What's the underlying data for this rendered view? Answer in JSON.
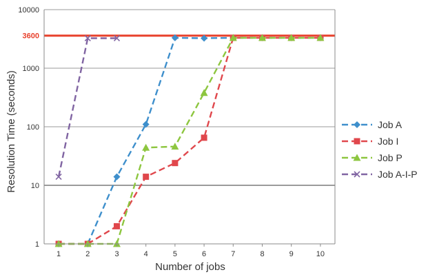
{
  "chart_data": {
    "type": "line",
    "title": "",
    "xlabel": "Number of jobs",
    "ylabel": "Resolution Time (seconds)",
    "y_scale": "log",
    "ylim": [
      1,
      10000
    ],
    "xlim": [
      0.5,
      10.5
    ],
    "x": [
      1,
      2,
      3,
      4,
      5,
      6,
      7,
      8,
      9,
      10
    ],
    "x_tick_labels": [
      "1",
      "2",
      "3",
      "4",
      "5",
      "6",
      "7",
      "8",
      "9",
      "10"
    ],
    "y_ticks": [
      {
        "value": 1,
        "label": "1"
      },
      {
        "value": 10,
        "label": "10"
      },
      {
        "value": 100,
        "label": "100"
      },
      {
        "value": 1000,
        "label": "1000"
      },
      {
        "value": 10000,
        "label": "10000"
      }
    ],
    "reference_line": {
      "value": 3600,
      "label": "3600",
      "color": "#e8412c"
    },
    "grid": true,
    "legend_position": "right",
    "series": [
      {
        "name": "Job A",
        "color": "#3e8fcc",
        "marker": "diamond",
        "values": [
          1,
          1,
          14,
          110,
          3300,
          3250,
          3300,
          3300,
          3300,
          3300
        ]
      },
      {
        "name": "Job I",
        "color": "#e0474c",
        "marker": "square",
        "values": [
          1,
          1,
          2,
          14,
          24,
          65,
          3300,
          3300,
          3300,
          3300
        ]
      },
      {
        "name": "Job P",
        "color": "#8dc63f",
        "marker": "triangle",
        "values": [
          1,
          1,
          1,
          44,
          46,
          380,
          3300,
          3300,
          3300,
          3300
        ]
      },
      {
        "name": "Job A-I-P",
        "color": "#8064a2",
        "marker": "x",
        "values": [
          14,
          3250,
          3250,
          null,
          null,
          null,
          null,
          null,
          null,
          null
        ]
      }
    ]
  }
}
